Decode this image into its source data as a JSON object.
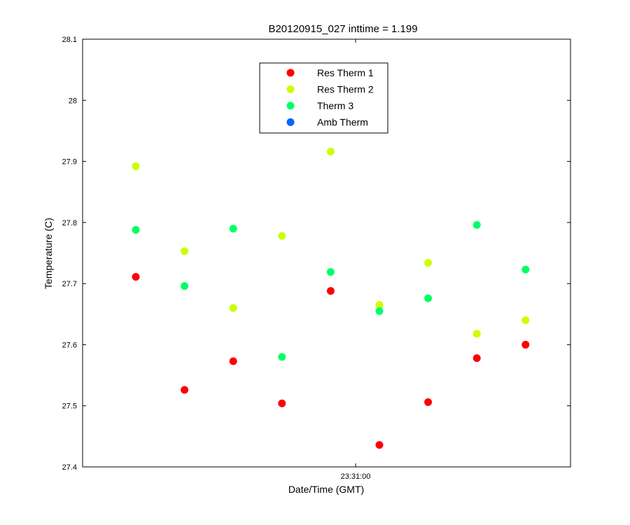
{
  "chart_data": {
    "type": "scatter",
    "title": "B20120915_027 inttime = 1.199",
    "xlabel": "Date/Time (GMT)",
    "ylabel": "Temperature (C)",
    "ylim": [
      27.4,
      28.1
    ],
    "yticks": [
      "27.4",
      "27.5",
      "27.6",
      "27.7",
      "27.8",
      "27.9",
      "28",
      "28.1"
    ],
    "xticks": [
      "23:31:00"
    ],
    "legend_position": "top-center",
    "grid": false,
    "x": [
      1,
      2,
      3,
      4,
      5,
      6,
      7,
      8,
      9
    ],
    "series": [
      {
        "name": "Res Therm 1",
        "color": "#ff0000",
        "values": [
          27.711,
          27.526,
          27.573,
          27.504,
          27.688,
          27.436,
          27.506,
          27.578,
          27.6
        ]
      },
      {
        "name": "Res Therm 2",
        "color": "#ccff00",
        "values": [
          27.892,
          27.753,
          27.66,
          27.778,
          27.916,
          27.665,
          27.734,
          27.618,
          27.64
        ]
      },
      {
        "name": "Therm 3",
        "color": "#00ff66",
        "values": [
          27.788,
          27.696,
          27.79,
          27.58,
          27.719,
          27.655,
          27.676,
          27.796,
          27.723
        ]
      },
      {
        "name": "Amb Therm",
        "color": "#0066ff",
        "values": []
      }
    ]
  }
}
